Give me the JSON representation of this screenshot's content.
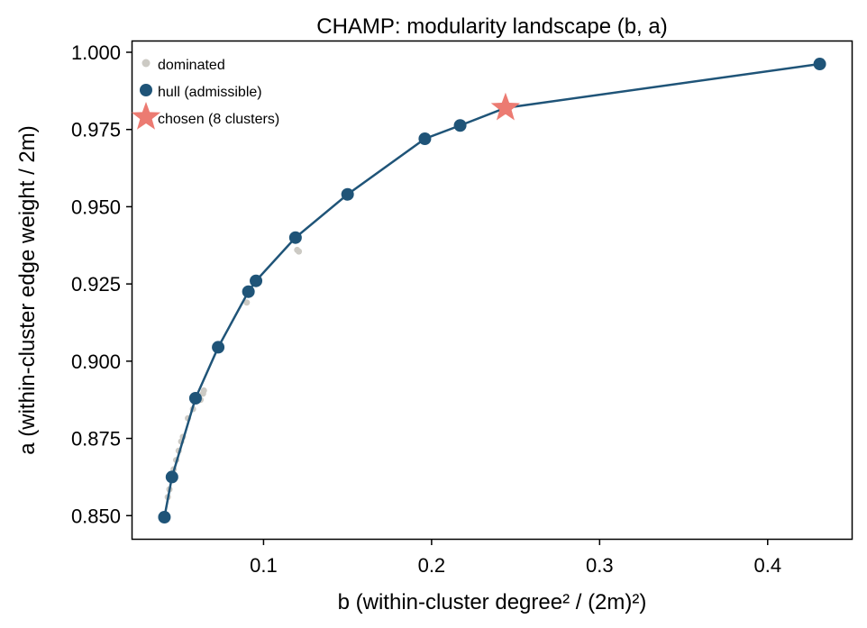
{
  "chart_data": {
    "type": "scatter",
    "title": "CHAMP: modularity landscape (b, a)",
    "xlabel": "b  (within-cluster degree² / (2m)²)",
    "ylabel": "a  (within-cluster edge weight / 2m)",
    "xlim": [
      0.022,
      0.45
    ],
    "ylim": [
      0.8425,
      1.0035
    ],
    "xticks": [
      0.1,
      0.2,
      0.3,
      0.4
    ],
    "xtick_labels": [
      "0.1",
      "0.2",
      "0.3",
      "0.4"
    ],
    "yticks": [
      0.85,
      0.875,
      0.9,
      0.925,
      0.95,
      0.975,
      1.0
    ],
    "ytick_labels": [
      "0.850",
      "0.875",
      "0.900",
      "0.925",
      "0.950",
      "0.975",
      "1.000"
    ],
    "grid": false,
    "legend_position": "top-left",
    "series": [
      {
        "name": "dominated",
        "kind": "scatter",
        "color": "#cccac4",
        "marker": "small-dot",
        "points": [
          [
            0.043,
            0.856
          ],
          [
            0.044,
            0.8585
          ],
          [
            0.0455,
            0.862
          ],
          [
            0.0465,
            0.865
          ],
          [
            0.048,
            0.868
          ],
          [
            0.0495,
            0.871
          ],
          [
            0.051,
            0.874
          ],
          [
            0.052,
            0.8755
          ],
          [
            0.055,
            0.8815
          ],
          [
            0.058,
            0.8845
          ],
          [
            0.0605,
            0.888
          ],
          [
            0.0625,
            0.8875
          ],
          [
            0.064,
            0.8895
          ],
          [
            0.0645,
            0.8905
          ],
          [
            0.09,
            0.919
          ],
          [
            0.12,
            0.936
          ],
          [
            0.121,
            0.9355
          ]
        ]
      },
      {
        "name": "hull (admissible)",
        "kind": "line+marker",
        "color": "#1f5478",
        "points": [
          [
            0.041,
            0.8495
          ],
          [
            0.0455,
            0.8625
          ],
          [
            0.0595,
            0.888
          ],
          [
            0.073,
            0.9045
          ],
          [
            0.091,
            0.9225
          ],
          [
            0.0955,
            0.926
          ],
          [
            0.119,
            0.94
          ],
          [
            0.15,
            0.954
          ],
          [
            0.196,
            0.972
          ],
          [
            0.217,
            0.9763
          ],
          [
            0.244,
            0.982
          ],
          [
            0.431,
            0.9962
          ]
        ]
      },
      {
        "name": "chosen (8 clusters)",
        "kind": "marker",
        "color": "#ec7b72",
        "marker": "star",
        "points": [
          [
            0.244,
            0.982
          ]
        ]
      }
    ]
  }
}
